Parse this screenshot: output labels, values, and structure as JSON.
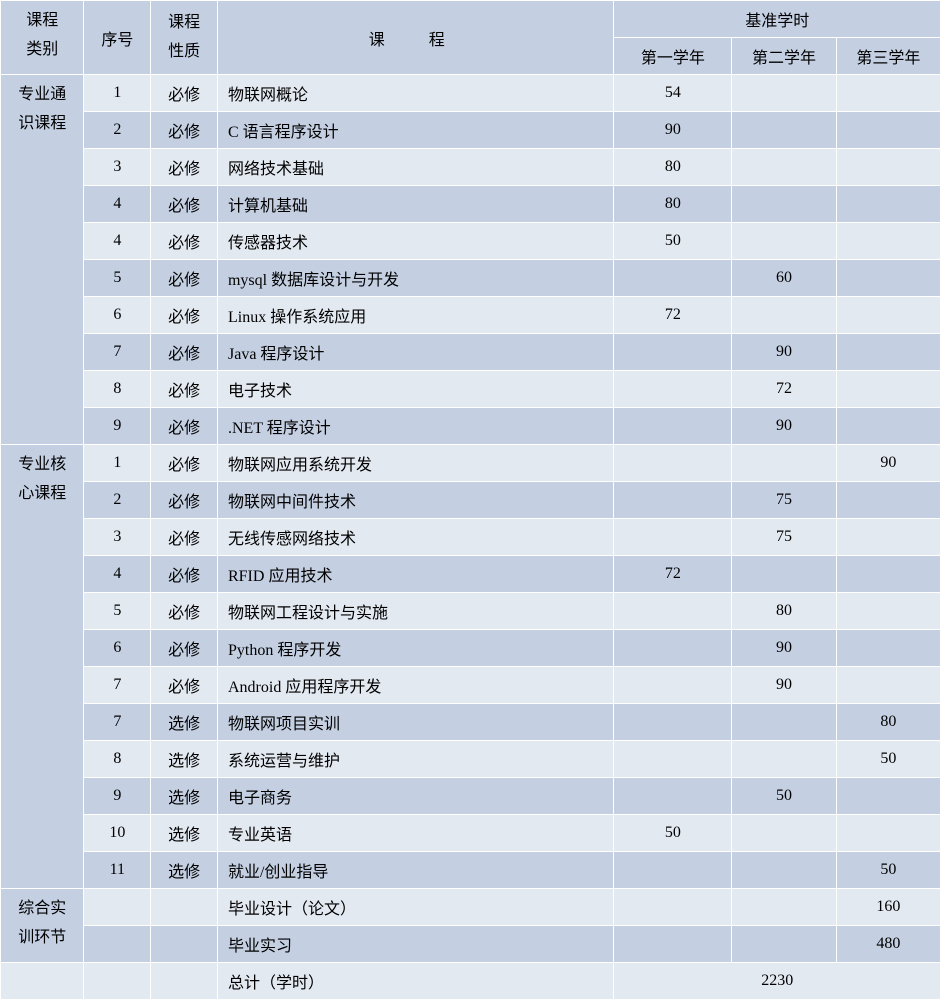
{
  "headers": {
    "category": "课程类别",
    "category_line1": "课程",
    "category_line2": "类别",
    "seq": "序号",
    "nature": "课程性质",
    "nature_line1": "课程",
    "nature_line2": "性质",
    "course": "课 程",
    "base_hours": "基准学时",
    "year1": "第一学年",
    "year2": "第二学年",
    "year3": "第三学年"
  },
  "categories": {
    "general": "专业通识课程",
    "general_line1": "专业通",
    "general_line2": "识课程",
    "core": "专业核心课程",
    "core_line1": "专业核",
    "core_line2": "心课程",
    "practice": "综合实训环节",
    "practice_line1": "综合实",
    "practice_line2": "训环节"
  },
  "rows": [
    {
      "seq": "1",
      "nature": "必修",
      "course": "物联网概论",
      "y1": "54",
      "y2": "",
      "y3": ""
    },
    {
      "seq": "2",
      "nature": "必修",
      "course": "C 语言程序设计",
      "y1": "90",
      "y2": "",
      "y3": ""
    },
    {
      "seq": "3",
      "nature": "必修",
      "course": "网络技术基础",
      "y1": "80",
      "y2": "",
      "y3": ""
    },
    {
      "seq": "4",
      "nature": "必修",
      "course": "计算机基础",
      "y1": "80",
      "y2": "",
      "y3": ""
    },
    {
      "seq": "4",
      "nature": "必修",
      "course": "传感器技术",
      "y1": "50",
      "y2": "",
      "y3": ""
    },
    {
      "seq": "5",
      "nature": "必修",
      "course": "mysql 数据库设计与开发",
      "y1": "",
      "y2": "60",
      "y3": ""
    },
    {
      "seq": "6",
      "nature": "必修",
      "course": "Linux 操作系统应用",
      "y1": "72",
      "y2": "",
      "y3": ""
    },
    {
      "seq": "7",
      "nature": "必修",
      "course": "Java 程序设计",
      "y1": "",
      "y2": "90",
      "y3": ""
    },
    {
      "seq": "8",
      "nature": "必修",
      "course": "电子技术",
      "y1": "",
      "y2": "72",
      "y3": ""
    },
    {
      "seq": "9",
      "nature": "必修",
      "course": ".NET 程序设计",
      "y1": "",
      "y2": "90",
      "y3": ""
    },
    {
      "seq": "1",
      "nature": "必修",
      "course": "物联网应用系统开发",
      "y1": "",
      "y2": "",
      "y3": "90"
    },
    {
      "seq": "2",
      "nature": "必修",
      "course": "物联网中间件技术",
      "y1": "",
      "y2": "75",
      "y3": ""
    },
    {
      "seq": "3",
      "nature": "必修",
      "course": "无线传感网络技术",
      "y1": "",
      "y2": "75",
      "y3": ""
    },
    {
      "seq": "4",
      "nature": "必修",
      "course": "RFID 应用技术",
      "y1": "72",
      "y2": "",
      "y3": ""
    },
    {
      "seq": "5",
      "nature": "必修",
      "course": "物联网工程设计与实施",
      "y1": "",
      "y2": "80",
      "y3": ""
    },
    {
      "seq": "6",
      "nature": "必修",
      "course": "Python 程序开发",
      "y1": "",
      "y2": "90",
      "y3": ""
    },
    {
      "seq": "7",
      "nature": "必修",
      "course": "Android 应用程序开发",
      "y1": "",
      "y2": "90",
      "y3": ""
    },
    {
      "seq": "7",
      "nature": "选修",
      "course": "物联网项目实训",
      "y1": "",
      "y2": "",
      "y3": "80"
    },
    {
      "seq": "8",
      "nature": "选修",
      "course": "系统运营与维护",
      "y1": "",
      "y2": "",
      "y3": "50"
    },
    {
      "seq": "9",
      "nature": "选修",
      "course": "电子商务",
      "y1": "",
      "y2": "50",
      "y3": ""
    },
    {
      "seq": "10",
      "nature": "选修",
      "course": "专业英语",
      "y1": "50",
      "y2": "",
      "y3": ""
    },
    {
      "seq": "11",
      "nature": "选修",
      "course": "就业/创业指导",
      "y1": "",
      "y2": "",
      "y3": "50"
    },
    {
      "seq": "",
      "nature": "",
      "course": "毕业设计（论文）",
      "y1": "",
      "y2": "",
      "y3": "160"
    },
    {
      "seq": "",
      "nature": "",
      "course": "毕业实习",
      "y1": "",
      "y2": "",
      "y3": "480"
    }
  ],
  "total": {
    "label": "总计（学时）",
    "value": "2230"
  },
  "colors": {
    "header_bg": "#c4d0e2",
    "row_odd_bg": "#c4d0e2",
    "row_even_bg": "#e3e9f1",
    "border": "#ffffff",
    "text": "#000000"
  }
}
